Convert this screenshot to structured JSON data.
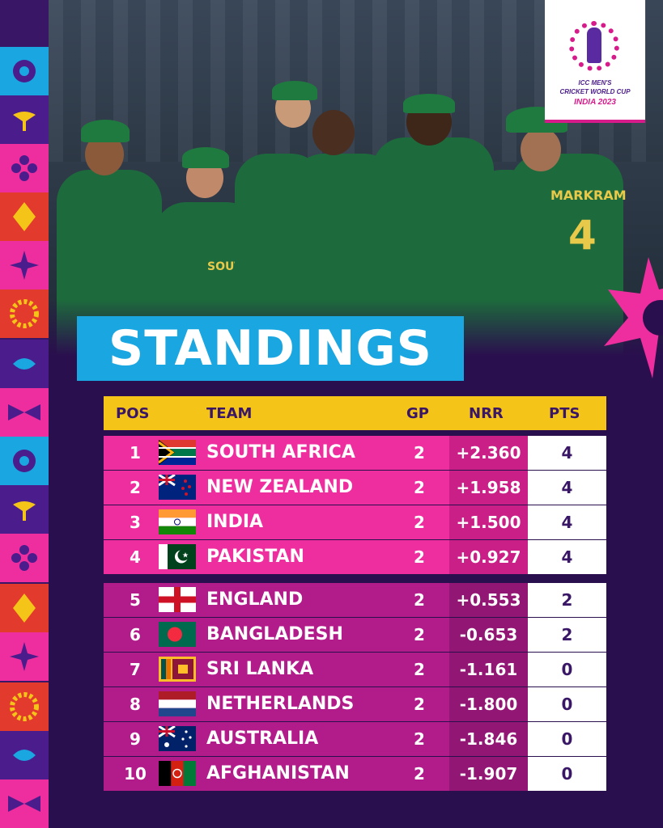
{
  "logo": {
    "line1": "ICC MEN'S",
    "line2": "CRICKET WORLD CUP",
    "line3": "INDIA 2023"
  },
  "photo": {
    "jersey_text_1": "SOUTH AFRICA",
    "jersey_text_2": "MARKRAM",
    "jersey_number": "4"
  },
  "title": "STANDINGS",
  "header": {
    "pos": "POS",
    "team": "TEAM",
    "gp": "GP",
    "nrr": "NRR",
    "pts": "PTS"
  },
  "rows": [
    {
      "pos": "1",
      "team": "SOUTH AFRICA",
      "gp": "2",
      "nrr": "+2.360",
      "pts": "4",
      "flag": "south-africa"
    },
    {
      "pos": "2",
      "team": "NEW ZEALAND",
      "gp": "2",
      "nrr": "+1.958",
      "pts": "4",
      "flag": "new-zealand"
    },
    {
      "pos": "3",
      "team": "INDIA",
      "gp": "2",
      "nrr": "+1.500",
      "pts": "4",
      "flag": "india"
    },
    {
      "pos": "4",
      "team": "PAKISTAN",
      "gp": "2",
      "nrr": "+0.927",
      "pts": "4",
      "flag": "pakistan"
    },
    {
      "pos": "5",
      "team": "ENGLAND",
      "gp": "2",
      "nrr": "+0.553",
      "pts": "2",
      "flag": "england"
    },
    {
      "pos": "6",
      "team": "BANGLADESH",
      "gp": "2",
      "nrr": "-0.653",
      "pts": "2",
      "flag": "bangladesh"
    },
    {
      "pos": "7",
      "team": "SRI LANKA",
      "gp": "2",
      "nrr": "-1.161",
      "pts": "0",
      "flag": "sri-lanka"
    },
    {
      "pos": "8",
      "team": "NETHERLANDS",
      "gp": "2",
      "nrr": "-1.800",
      "pts": "0",
      "flag": "netherlands"
    },
    {
      "pos": "9",
      "team": "AUSTRALIA",
      "gp": "2",
      "nrr": "-1.846",
      "pts": "0",
      "flag": "australia"
    },
    {
      "pos": "10",
      "team": "AFGHANISTAN",
      "gp": "2",
      "nrr": "-1.907",
      "pts": "0",
      "flag": "afghanistan"
    }
  ],
  "colors": {
    "background": "#2a0f4e",
    "title_box": "#1aa6e0",
    "header": "#f4c418",
    "top4_row": "#ee2e9e",
    "other_row": "#b21c8a",
    "points_cell": "#ffffff"
  }
}
